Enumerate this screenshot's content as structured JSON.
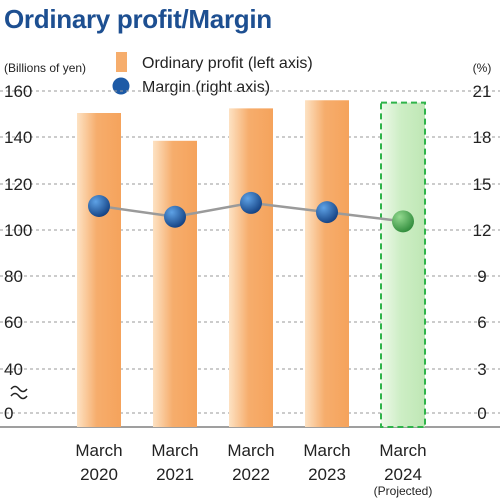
{
  "header": {
    "title": "Ordinary profit/Margin"
  },
  "colors": {
    "bar_actual": "#f6ad6c",
    "bar_projected": "#cdeec5",
    "projected_border": "#2fb34a",
    "line": "#9a9a9a",
    "marker": "#1d5aa6",
    "marker_projected": "#46a84c",
    "grid": "#9a9a9a"
  },
  "chart_data": {
    "type": "bar",
    "title": "Ordinary profit/Margin",
    "categories": [
      "March 2020",
      "March 2021",
      "March 2022",
      "March 2023",
      "March 2024"
    ],
    "category_lines": [
      [
        "March",
        "2020"
      ],
      [
        "March",
        "2021"
      ],
      [
        "March",
        "2022"
      ],
      [
        "March",
        "2023"
      ],
      [
        "March",
        "2024"
      ]
    ],
    "category_notes": [
      "",
      "",
      "",
      "",
      "(Projected)"
    ],
    "projected_index": 4,
    "left_axis": {
      "unit": "(Billions of yen)",
      "ticks": [
        "160",
        "140",
        "120",
        "100",
        "80",
        "60",
        "40",
        "0"
      ],
      "tick_values": [
        160,
        140,
        120,
        100,
        80,
        60,
        40,
        0
      ],
      "break_between": [
        0,
        40
      ]
    },
    "right_axis": {
      "unit": "(%)",
      "ticks": [
        "21",
        "18",
        "15",
        "12",
        "9",
        "6",
        "3",
        "0"
      ],
      "tick_values": [
        21,
        18,
        15,
        12,
        9,
        6,
        3,
        0
      ]
    },
    "grid": true,
    "legend_position": "top",
    "series": [
      {
        "name": "Ordinary profit (left axis)",
        "type": "bar",
        "axis": "left",
        "values": [
          150.5,
          138.5,
          152.5,
          156,
          155
        ]
      },
      {
        "name": "Margin (right axis)",
        "type": "line",
        "axis": "right",
        "values": [
          13.5,
          12.8,
          13.7,
          13.1,
          12.5
        ]
      }
    ]
  }
}
